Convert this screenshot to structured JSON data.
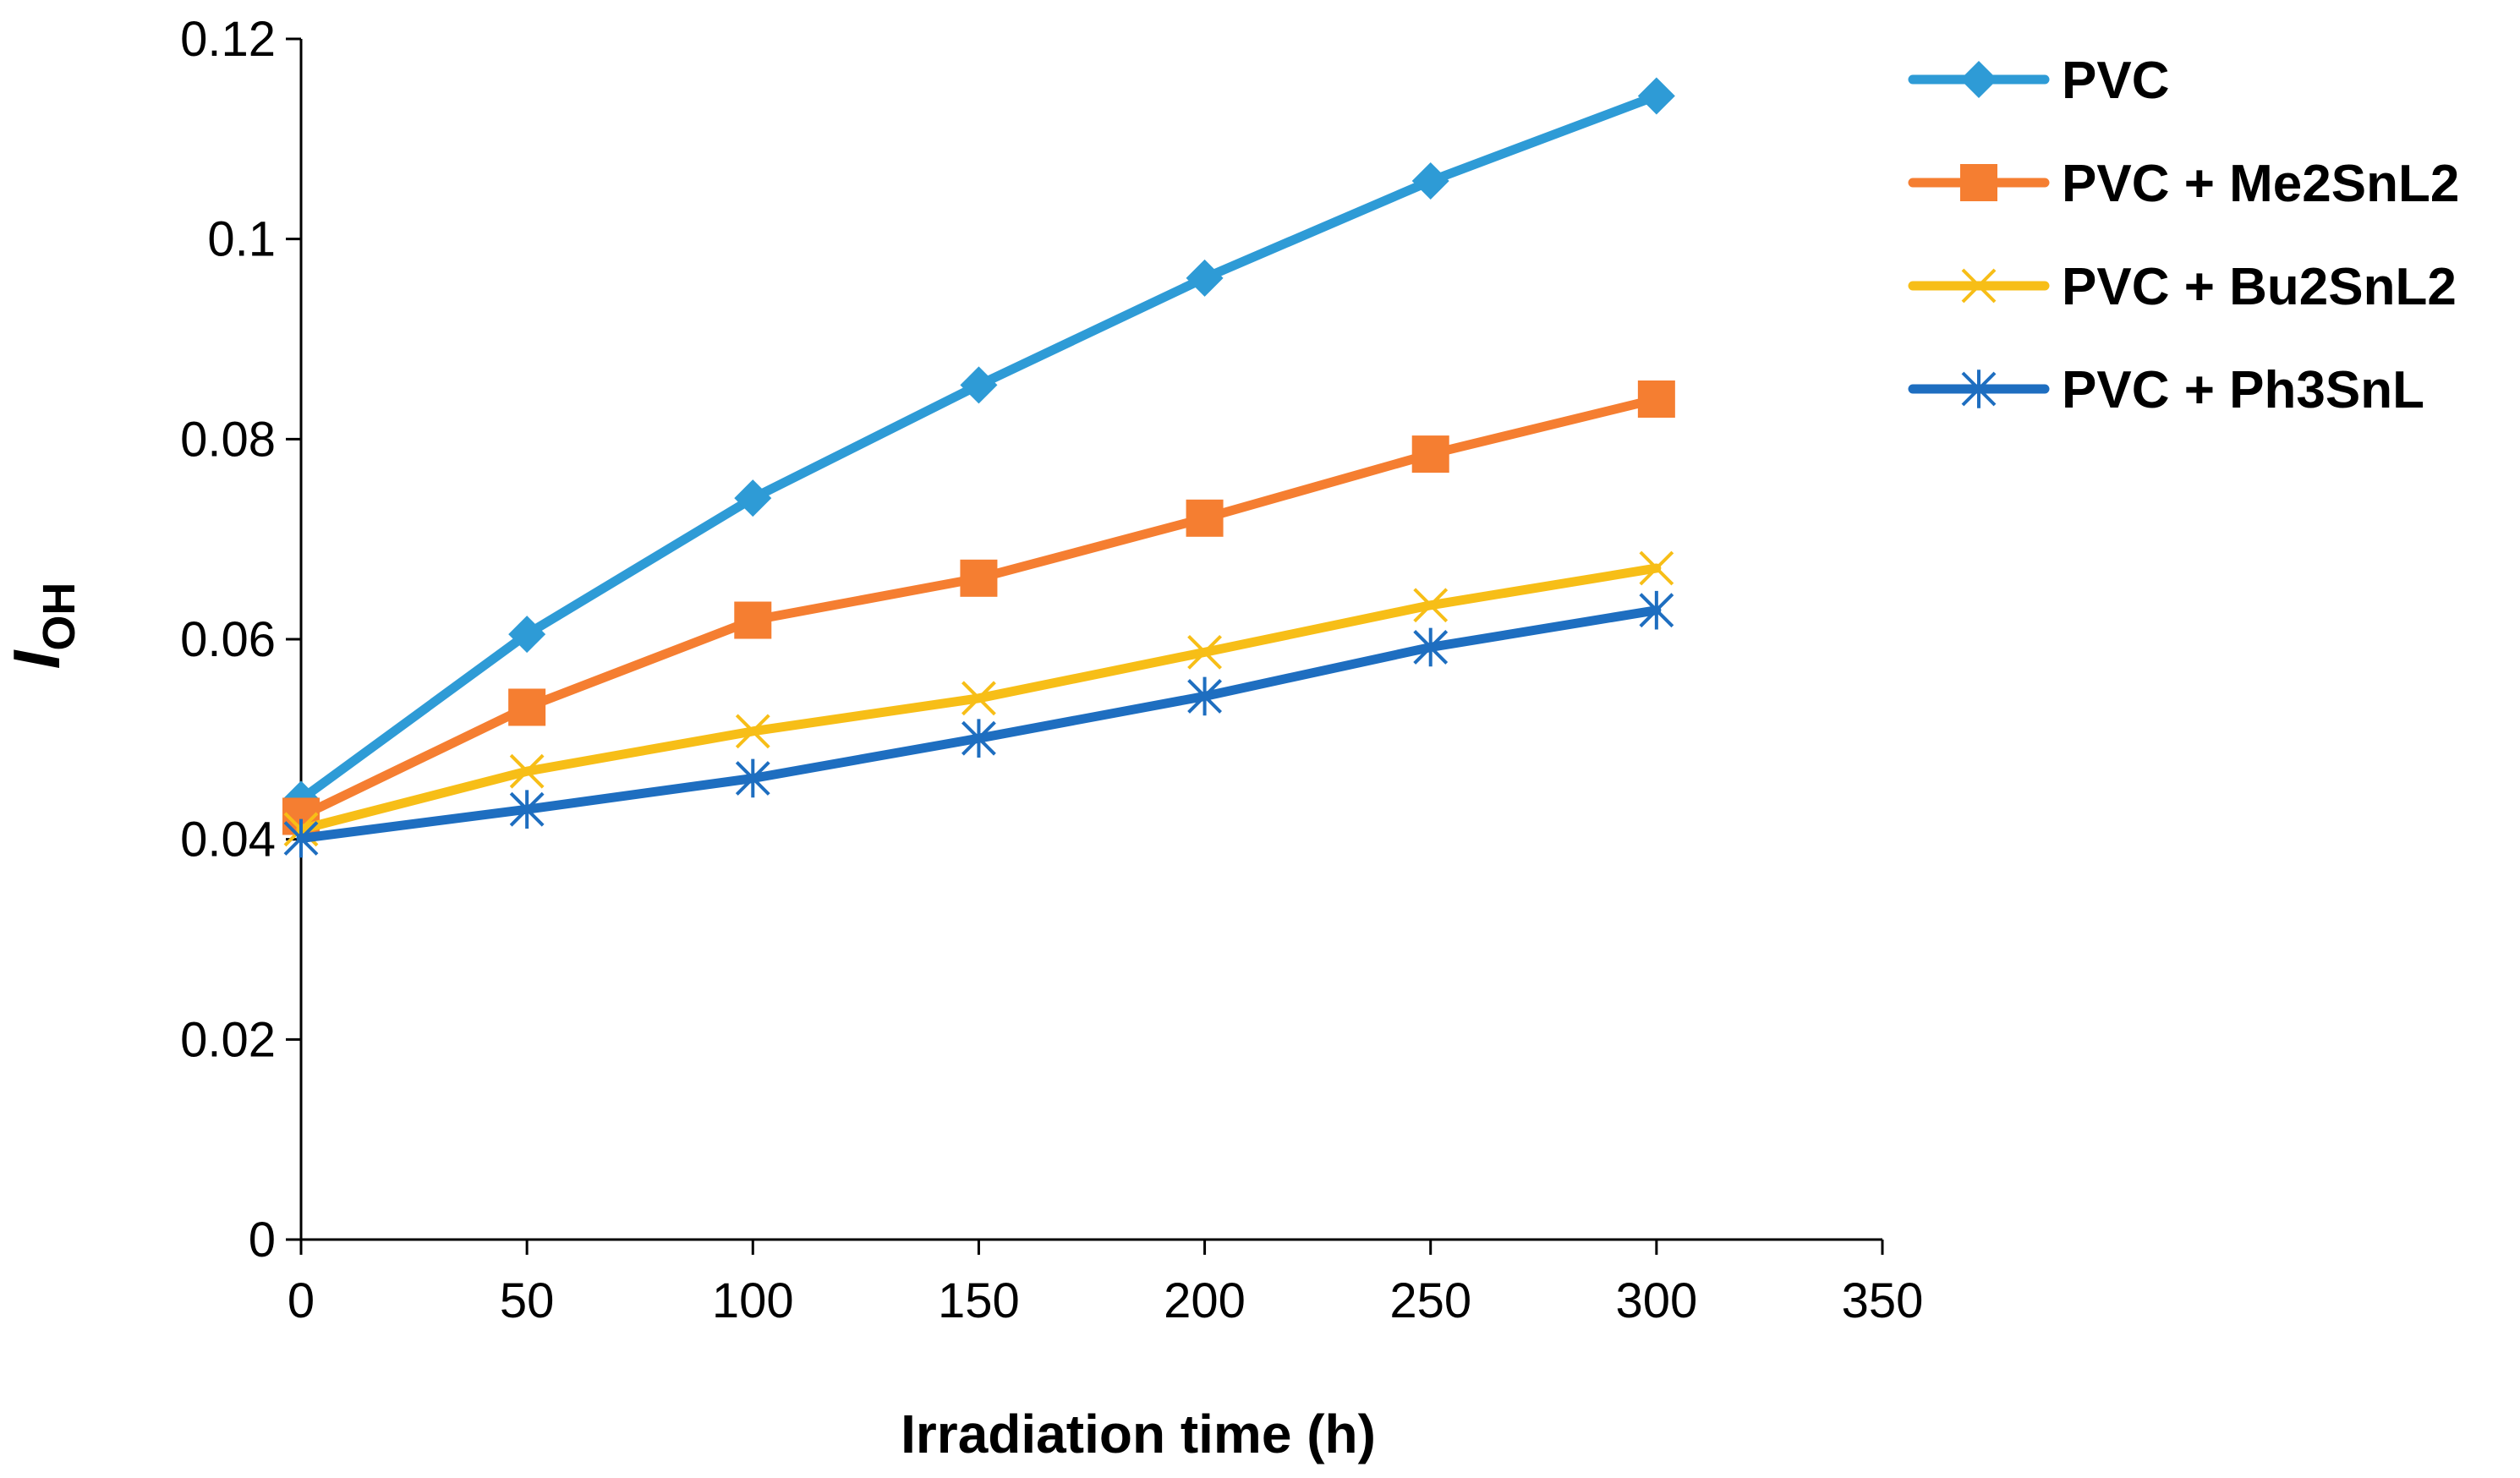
{
  "chart_data": {
    "type": "line",
    "title": "",
    "xlabel": "Irradiation time (h)",
    "ylabel": {
      "main": "I",
      "subscript": "OH"
    },
    "xlim": [
      0,
      350
    ],
    "ylim": [
      0,
      0.12
    ],
    "xticks": [
      0,
      50,
      100,
      150,
      200,
      250,
      300,
      350
    ],
    "xtick_labels": [
      "0",
      "50",
      "100",
      "150",
      "200",
      "250",
      "300",
      "350"
    ],
    "yticks": [
      0,
      0.02,
      0.04,
      0.06,
      0.08,
      0.1,
      0.12
    ],
    "ytick_labels": [
      "0",
      "0.02",
      "0.04",
      "0.06",
      "0.08",
      "0.1",
      "0.12"
    ],
    "grid": false,
    "legend_position": "top-right",
    "x": [
      0,
      50,
      100,
      150,
      200,
      250,
      300
    ],
    "series": [
      {
        "name": "PVC",
        "color": "#2E9BD6",
        "marker": "diamond",
        "values": [
          0.044,
          0.0605,
          0.0741,
          0.0854,
          0.0961,
          0.1058,
          0.1143
        ]
      },
      {
        "name": "PVC + Me2SnL2",
        "color": "#F57E31",
        "marker": "square",
        "values": [
          0.0423,
          0.0532,
          0.0619,
          0.0661,
          0.0721,
          0.0785,
          0.084
        ]
      },
      {
        "name": "PVC + Bu2SnL2",
        "color": "#F7BE17",
        "marker": "x",
        "values": [
          0.041,
          0.0468,
          0.0508,
          0.0541,
          0.0587,
          0.0634,
          0.0671
        ]
      },
      {
        "name": "PVC + Ph3SnL",
        "color": "#1E6EC0",
        "marker": "asterisk",
        "values": [
          0.0401,
          0.043,
          0.0461,
          0.0501,
          0.0543,
          0.0592,
          0.0629
        ]
      }
    ]
  }
}
